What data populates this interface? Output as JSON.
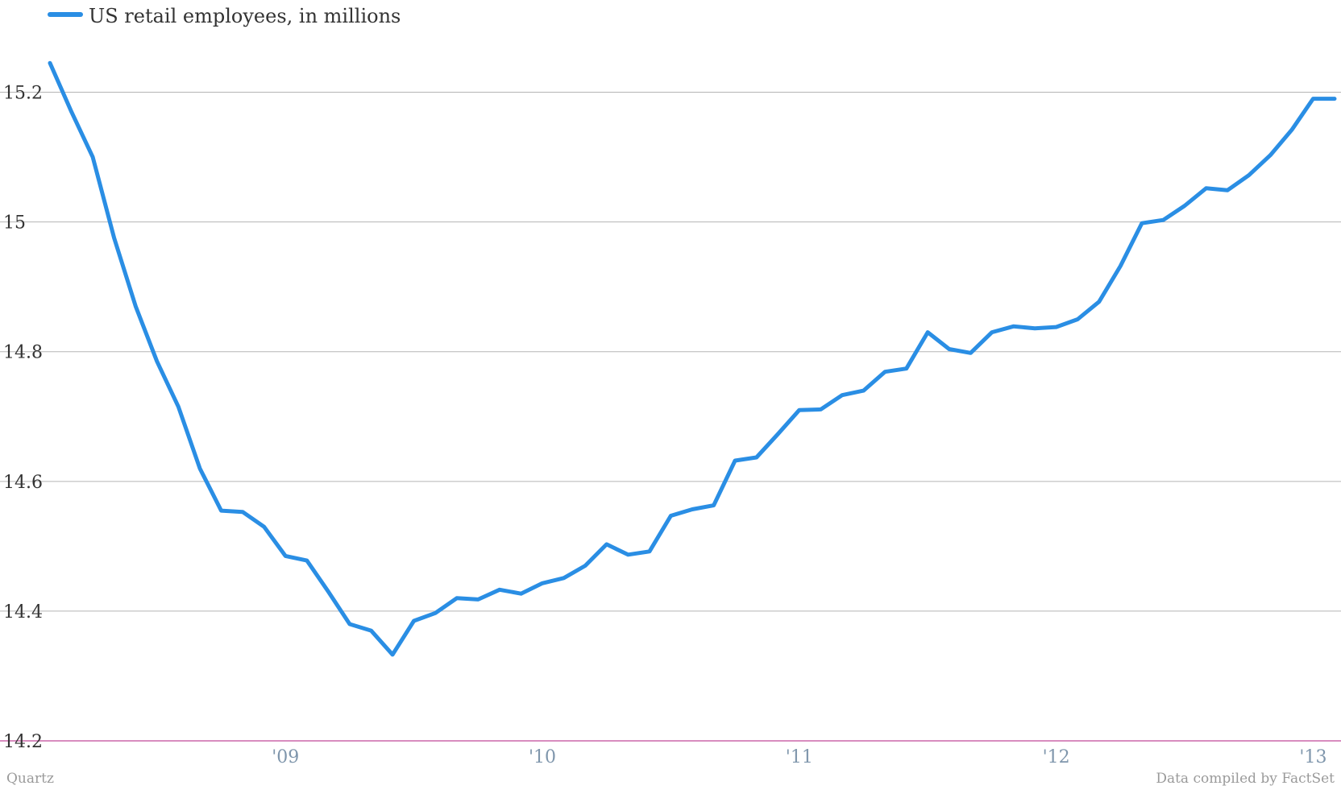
{
  "chart_data": {
    "type": "line",
    "legend": {
      "label": "US retail employees, in millions",
      "placement": "top-left"
    },
    "colors": {
      "series": "#2a8ee4",
      "grid": "#b5b5b5",
      "baseline": "#cc66aa"
    },
    "ylim": [
      14.2,
      15.3
    ],
    "y_ticks": [
      {
        "value": 14.2,
        "label": "14.2"
      },
      {
        "value": 14.4,
        "label": "14.4"
      },
      {
        "value": 14.6,
        "label": "14.6"
      },
      {
        "value": 14.8,
        "label": "14.8"
      },
      {
        "value": 15.0,
        "label": "15"
      },
      {
        "value": 15.2,
        "label": "15.2"
      }
    ],
    "xlim": [
      "2008-02",
      "2013-02"
    ],
    "x_ticks": [
      {
        "value": "2009-01",
        "label": "'09"
      },
      {
        "value": "2010-01",
        "label": "'10"
      },
      {
        "value": "2011-01",
        "label": "'11"
      },
      {
        "value": "2012-01",
        "label": "'12"
      },
      {
        "value": "2013-01",
        "label": "'13"
      }
    ],
    "grid": true,
    "series": [
      {
        "name": "US retail employees, in millions",
        "x": [
          "2008-02",
          "2008-03",
          "2008-04",
          "2008-05",
          "2008-06",
          "2008-07",
          "2008-08",
          "2008-09",
          "2008-10",
          "2008-11",
          "2008-12",
          "2009-01",
          "2009-02",
          "2009-03",
          "2009-04",
          "2009-05",
          "2009-06",
          "2009-07",
          "2009-08",
          "2009-09",
          "2009-10",
          "2009-11",
          "2009-12",
          "2010-01",
          "2010-02",
          "2010-03",
          "2010-04",
          "2010-05",
          "2010-06",
          "2010-07",
          "2010-08",
          "2010-09",
          "2010-10",
          "2010-11",
          "2010-12",
          "2011-01",
          "2011-02",
          "2011-03",
          "2011-04",
          "2011-05",
          "2011-06",
          "2011-07",
          "2011-08",
          "2011-09",
          "2011-10",
          "2011-11",
          "2011-12",
          "2012-01",
          "2012-02",
          "2012-03",
          "2012-04",
          "2012-05",
          "2012-06",
          "2012-07",
          "2012-08",
          "2012-09",
          "2012-10",
          "2012-11",
          "2012-12",
          "2013-01",
          "2013-02"
        ],
        "values": [
          15.245,
          15.17,
          15.1,
          14.975,
          14.87,
          14.785,
          14.715,
          14.62,
          14.555,
          14.553,
          14.53,
          14.485,
          14.478,
          14.43,
          14.38,
          14.37,
          14.333,
          14.385,
          14.397,
          14.42,
          14.418,
          14.433,
          14.427,
          14.443,
          14.451,
          14.47,
          14.503,
          14.487,
          14.492,
          14.547,
          14.557,
          14.563,
          14.632,
          14.637,
          14.673,
          14.71,
          14.711,
          14.733,
          14.74,
          14.769,
          14.774,
          14.83,
          14.804,
          14.798,
          14.83,
          14.839,
          14.836,
          14.838,
          14.85,
          14.877,
          14.932,
          14.998,
          15.003,
          15.025,
          15.052,
          15.049,
          15.072,
          15.103,
          15.142,
          15.19,
          15.19
        ]
      }
    ],
    "footer": {
      "source_label": "Quartz",
      "credit": "Data compiled by FactSet"
    }
  }
}
